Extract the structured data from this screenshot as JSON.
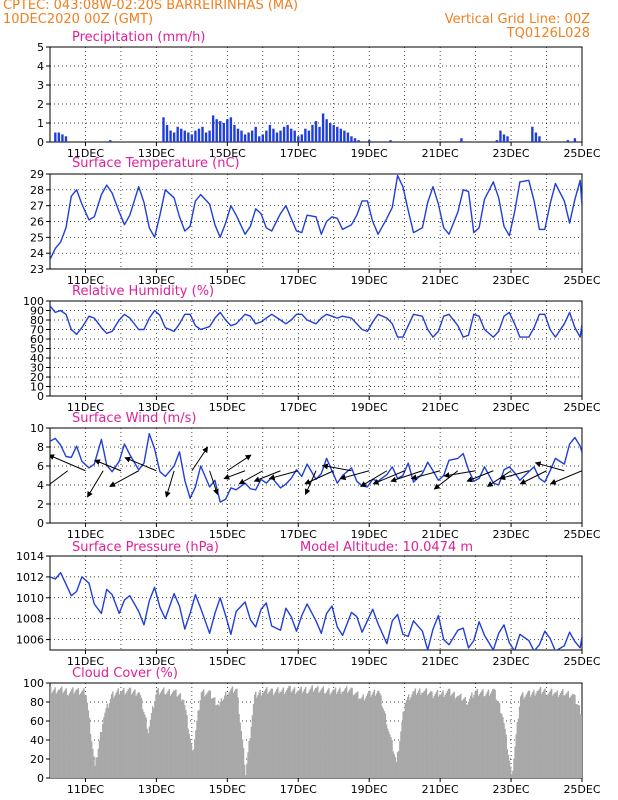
{
  "header": {
    "line1": "CPTEC:   043:08W-02:20S   BARREIRINHAS (MA)",
    "line2_left": "10DEC2020 00Z (GMT)",
    "line2_right": "Vertical Grid Line: 00Z",
    "line3_right": "TQ0126L028"
  },
  "colors": {
    "header": "#f08020",
    "title": "#e0209a",
    "series": "#1f3fd8",
    "arrows": "#000000",
    "cloud": "#a8a8a8"
  },
  "chart_data": [
    {
      "type": "bar",
      "title": "Precipitation (mm/h)",
      "ylim": [
        0,
        5
      ],
      "yticks": [
        0,
        1,
        2,
        3,
        4,
        5
      ],
      "xlim": [
        10,
        25
      ],
      "xticks": [
        "11DEC",
        "13DEC",
        "15DEC",
        "17DEC",
        "19DEC",
        "21DEC",
        "23DEC",
        "25DEC"
      ],
      "x": [
        10.15,
        10.25,
        10.35,
        10.45,
        11.7,
        13.2,
        13.3,
        13.4,
        13.5,
        13.6,
        13.7,
        13.8,
        13.9,
        14.0,
        14.1,
        14.2,
        14.3,
        14.4,
        14.5,
        14.6,
        14.7,
        14.8,
        14.9,
        15.0,
        15.1,
        15.2,
        15.3,
        15.4,
        15.5,
        15.6,
        15.7,
        15.8,
        15.9,
        16.0,
        16.1,
        16.2,
        16.3,
        16.4,
        16.5,
        16.6,
        16.7,
        16.8,
        16.9,
        17.0,
        17.1,
        17.2,
        17.3,
        17.4,
        17.5,
        17.6,
        17.7,
        17.8,
        17.9,
        18.0,
        18.1,
        18.2,
        18.3,
        18.4,
        18.5,
        18.6,
        18.7,
        19.0,
        19.6,
        21.6,
        22.6,
        22.7,
        22.8,
        22.9,
        23.6,
        23.7,
        23.8,
        24.6,
        24.8
      ],
      "values": [
        0.5,
        0.5,
        0.4,
        0.3,
        0.1,
        1.3,
        0.9,
        0.6,
        0.5,
        0.8,
        0.7,
        0.6,
        0.5,
        0.4,
        0.6,
        0.7,
        0.8,
        0.5,
        0.6,
        1.4,
        1.2,
        1.1,
        1.0,
        1.2,
        1.3,
        0.9,
        0.7,
        0.6,
        0.4,
        0.5,
        0.6,
        0.8,
        0.3,
        0.4,
        0.6,
        0.9,
        0.7,
        0.5,
        0.6,
        0.8,
        0.9,
        0.7,
        0.6,
        0.3,
        0.4,
        0.7,
        0.6,
        0.9,
        1.1,
        0.8,
        1.5,
        1.2,
        1.0,
        0.9,
        0.8,
        0.7,
        0.6,
        0.5,
        0.3,
        0.2,
        0.1,
        0.1,
        0.1,
        0.2,
        0.1,
        0.6,
        0.4,
        0.3,
        0.8,
        0.5,
        0.3,
        0.1,
        0.2
      ]
    },
    {
      "type": "line",
      "title": "Surface Temperature (nC)",
      "ylim": [
        23,
        29
      ],
      "yticks": [
        23,
        24,
        25,
        26,
        27,
        28,
        29
      ],
      "xlim": [
        10,
        25
      ],
      "xticks": [
        "11DEC",
        "13DEC",
        "15DEC",
        "17DEC",
        "19DEC",
        "21DEC",
        "23DEC",
        "25DEC"
      ],
      "x": [
        10.0,
        10.15,
        10.3,
        10.45,
        10.6,
        10.75,
        10.9,
        11.1,
        11.25,
        11.45,
        11.6,
        11.75,
        11.95,
        12.1,
        12.25,
        12.5,
        12.65,
        12.8,
        12.95,
        13.1,
        13.25,
        13.5,
        13.65,
        13.8,
        13.95,
        14.1,
        14.25,
        14.5,
        14.65,
        14.8,
        14.95,
        15.1,
        15.25,
        15.5,
        15.65,
        15.8,
        15.95,
        16.1,
        16.25,
        16.5,
        16.65,
        16.8,
        16.95,
        17.1,
        17.25,
        17.5,
        17.65,
        17.8,
        17.95,
        18.1,
        18.25,
        18.5,
        18.65,
        18.8,
        18.95,
        19.1,
        19.25,
        19.5,
        19.65,
        19.8,
        19.95,
        20.1,
        20.25,
        20.5,
        20.65,
        20.8,
        20.95,
        21.1,
        21.25,
        21.5,
        21.65,
        21.8,
        21.95,
        22.1,
        22.25,
        22.5,
        22.65,
        22.8,
        22.95,
        23.1,
        23.25,
        23.5,
        23.65,
        23.8,
        23.95,
        24.1,
        24.25,
        24.5,
        24.65,
        24.8,
        24.95,
        25.0
      ],
      "values": [
        23.6,
        24.3,
        24.7,
        25.6,
        27.6,
        28.0,
        27.1,
        26.1,
        26.3,
        27.7,
        28.3,
        27.8,
        26.6,
        25.8,
        26.4,
        28.2,
        27.2,
        25.6,
        25.0,
        26.4,
        28.0,
        27.5,
        26.3,
        25.4,
        25.7,
        27.3,
        27.7,
        27.1,
        25.8,
        25.0,
        25.9,
        27.0,
        26.4,
        25.2,
        25.7,
        26.8,
        26.5,
        25.6,
        25.4,
        26.5,
        27.0,
        26.2,
        25.4,
        25.3,
        26.4,
        26.3,
        25.2,
        26.0,
        26.3,
        26.2,
        25.5,
        25.8,
        26.4,
        27.3,
        27.3,
        26.0,
        25.2,
        26.2,
        26.9,
        28.9,
        28.2,
        26.7,
        25.3,
        25.6,
        27.2,
        28.2,
        27.1,
        25.6,
        25.2,
        26.6,
        28.0,
        27.9,
        25.3,
        25.6,
        27.4,
        28.5,
        27.5,
        25.7,
        25.1,
        26.6,
        28.5,
        28.6,
        27.3,
        25.5,
        25.5,
        27.1,
        28.4,
        27.3,
        25.9,
        27.4,
        28.6,
        27.0
      ]
    },
    {
      "type": "line",
      "title": "Relative Humidity (%)",
      "ylim": [
        0,
        100
      ],
      "yticks": [
        0,
        10,
        20,
        30,
        40,
        50,
        60,
        70,
        80,
        90,
        100
      ],
      "xlim": [
        10,
        25
      ],
      "xticks": [
        "11DEC",
        "13DEC",
        "15DEC",
        "17DEC",
        "19DEC",
        "21DEC",
        "23DEC",
        "25DEC"
      ],
      "x": [
        10.0,
        10.15,
        10.3,
        10.45,
        10.6,
        10.75,
        10.9,
        11.1,
        11.25,
        11.45,
        11.6,
        11.75,
        11.95,
        12.1,
        12.25,
        12.5,
        12.65,
        12.8,
        12.95,
        13.1,
        13.25,
        13.5,
        13.65,
        13.8,
        13.95,
        14.1,
        14.25,
        14.5,
        14.65,
        14.8,
        14.95,
        15.1,
        15.25,
        15.5,
        15.65,
        15.8,
        15.95,
        16.1,
        16.25,
        16.5,
        16.65,
        16.8,
        16.95,
        17.1,
        17.25,
        17.5,
        17.65,
        17.8,
        17.95,
        18.1,
        18.25,
        18.5,
        18.65,
        18.8,
        18.95,
        19.1,
        19.25,
        19.5,
        19.65,
        19.8,
        19.95,
        20.1,
        20.25,
        20.5,
        20.65,
        20.8,
        20.95,
        21.1,
        21.25,
        21.5,
        21.65,
        21.8,
        21.95,
        22.1,
        22.25,
        22.5,
        22.65,
        22.8,
        22.95,
        23.1,
        23.25,
        23.5,
        23.65,
        23.8,
        23.95,
        24.1,
        24.25,
        24.5,
        24.65,
        24.8,
        24.95,
        25.0
      ],
      "values": [
        95,
        88,
        90,
        86,
        70,
        65,
        72,
        84,
        82,
        72,
        66,
        68,
        80,
        86,
        82,
        70,
        70,
        82,
        90,
        85,
        72,
        68,
        76,
        86,
        86,
        74,
        70,
        73,
        82,
        88,
        80,
        74,
        76,
        86,
        84,
        76,
        78,
        82,
        86,
        80,
        76,
        80,
        86,
        86,
        80,
        76,
        82,
        86,
        84,
        82,
        84,
        82,
        76,
        70,
        68,
        78,
        86,
        82,
        76,
        62,
        62,
        74,
        86,
        84,
        70,
        62,
        68,
        84,
        86,
        74,
        62,
        64,
        86,
        84,
        70,
        62,
        68,
        84,
        88,
        76,
        62,
        62,
        72,
        86,
        86,
        70,
        62,
        76,
        88,
        72,
        62,
        76
      ]
    },
    {
      "type": "line",
      "title": "Surface Wind (m/s)",
      "ylim": [
        0,
        10
      ],
      "yticks": [
        0,
        2,
        4,
        6,
        8,
        10
      ],
      "xlim": [
        10,
        25
      ],
      "xticks": [
        "11DEC",
        "13DEC",
        "15DEC",
        "17DEC",
        "19DEC",
        "21DEC",
        "23DEC",
        "25DEC"
      ],
      "x": [
        10.0,
        10.15,
        10.3,
        10.45,
        10.6,
        10.75,
        10.9,
        11.1,
        11.25,
        11.45,
        11.6,
        11.75,
        11.95,
        12.1,
        12.25,
        12.5,
        12.65,
        12.8,
        12.95,
        13.1,
        13.25,
        13.5,
        13.65,
        13.8,
        13.95,
        14.1,
        14.25,
        14.5,
        14.65,
        14.8,
        14.95,
        15.1,
        15.25,
        15.5,
        15.65,
        15.8,
        15.95,
        16.1,
        16.25,
        16.5,
        16.65,
        16.8,
        16.95,
        17.1,
        17.25,
        17.5,
        17.65,
        17.8,
        17.95,
        18.1,
        18.25,
        18.5,
        18.65,
        18.8,
        18.95,
        19.1,
        19.25,
        19.5,
        19.65,
        19.8,
        19.95,
        20.1,
        20.25,
        20.5,
        20.65,
        20.8,
        20.95,
        21.1,
        21.25,
        21.5,
        21.65,
        21.8,
        21.95,
        22.1,
        22.25,
        22.5,
        22.65,
        22.8,
        22.95,
        23.1,
        23.25,
        23.5,
        23.65,
        23.8,
        23.95,
        24.1,
        24.25,
        24.5,
        24.65,
        24.8,
        24.95,
        25.0
      ],
      "values": [
        8.6,
        8.9,
        8.2,
        7.0,
        6.9,
        8.1,
        6.5,
        5.8,
        6.2,
        8.8,
        6.1,
        5.4,
        6.5,
        8.3,
        7.2,
        5.6,
        6.3,
        9.4,
        7.8,
        5.4,
        4.9,
        6.0,
        7.5,
        4.5,
        2.6,
        3.8,
        6.0,
        3.8,
        4.5,
        2.2,
        2.5,
        3.7,
        3.5,
        4.2,
        3.6,
        3.5,
        4.6,
        4.2,
        4.8,
        3.7,
        4.1,
        4.7,
        5.6,
        4.9,
        6.2,
        4.6,
        5.2,
        6.8,
        5.5,
        4.2,
        5.0,
        5.8,
        4.4,
        3.9,
        3.8,
        4.6,
        4.4,
        5.1,
        5.9,
        4.7,
        5.0,
        6.3,
        4.3,
        5.2,
        6.4,
        5.5,
        4.5,
        5.0,
        6.6,
        6.8,
        7.3,
        5.6,
        4.4,
        4.7,
        5.9,
        4.2,
        4.0,
        5.6,
        5.9,
        5.3,
        4.5,
        5.4,
        5.9,
        4.7,
        4.3,
        5.5,
        6.8,
        6.2,
        8.3,
        9.0,
        8.1,
        7.4
      ],
      "vectors": [
        {
          "x": 10.0,
          "u": -1.0,
          "v": -0.4
        },
        {
          "x": 10.5,
          "u": -1.2,
          "v": -0.9
        },
        {
          "x": 11.0,
          "u": -1.4,
          "v": 0.6
        },
        {
          "x": 11.5,
          "u": -0.6,
          "v": -1.0
        },
        {
          "x": 12.0,
          "u": -1.0,
          "v": 0.4
        },
        {
          "x": 12.5,
          "u": -1.1,
          "v": -0.6
        },
        {
          "x": 13.0,
          "u": -1.2,
          "v": 0.5
        },
        {
          "x": 13.5,
          "u": -0.3,
          "v": -1.0
        },
        {
          "x": 14.0,
          "u": 0.6,
          "v": 0.9
        },
        {
          "x": 14.5,
          "u": 0.3,
          "v": -0.9
        },
        {
          "x": 15.0,
          "u": 0.9,
          "v": 0.6
        },
        {
          "x": 15.5,
          "u": -0.8,
          "v": -0.3
        },
        {
          "x": 16.0,
          "u": -0.9,
          "v": -0.5
        },
        {
          "x": 16.5,
          "u": -1.0,
          "v": -0.4
        },
        {
          "x": 17.0,
          "u": -1.1,
          "v": -0.3
        },
        {
          "x": 17.5,
          "u": -0.4,
          "v": -0.9
        },
        {
          "x": 18.0,
          "u": -1.1,
          "v": -0.5
        },
        {
          "x": 18.5,
          "u": -1.1,
          "v": 0.2
        },
        {
          "x": 19.0,
          "u": -1.1,
          "v": -0.3
        },
        {
          "x": 19.5,
          "u": -1.0,
          "v": -0.6
        },
        {
          "x": 20.0,
          "u": -1.2,
          "v": -0.5
        },
        {
          "x": 20.5,
          "u": -1.2,
          "v": -0.4
        },
        {
          "x": 21.0,
          "u": -1.1,
          "v": -0.3
        },
        {
          "x": 21.5,
          "u": -0.9,
          "v": -0.7
        },
        {
          "x": 22.0,
          "u": -1.2,
          "v": -0.2
        },
        {
          "x": 22.5,
          "u": -1.0,
          "v": -0.4
        },
        {
          "x": 23.0,
          "u": -0.9,
          "v": -0.6
        },
        {
          "x": 23.5,
          "u": -1.1,
          "v": -0.3
        },
        {
          "x": 24.0,
          "u": -1.0,
          "v": -0.5
        },
        {
          "x": 24.5,
          "u": -1.1,
          "v": 0.3
        },
        {
          "x": 25.0,
          "u": -1.2,
          "v": -0.5
        }
      ]
    },
    {
      "type": "line",
      "title": "Surface Pressure (hPa)",
      "annotation": "Model Altitude: 10.0474 m",
      "ylim": [
        1005,
        1014
      ],
      "yticks": [
        1006,
        1008,
        1010,
        1012,
        1014
      ],
      "xlim": [
        10,
        25
      ],
      "xticks": [
        "11DEC",
        "13DEC",
        "15DEC",
        "17DEC",
        "19DEC",
        "21DEC",
        "23DEC",
        "25DEC"
      ],
      "x": [
        10.0,
        10.15,
        10.3,
        10.45,
        10.6,
        10.75,
        10.9,
        11.1,
        11.25,
        11.45,
        11.6,
        11.75,
        11.95,
        12.1,
        12.25,
        12.5,
        12.65,
        12.8,
        12.95,
        13.1,
        13.25,
        13.5,
        13.65,
        13.8,
        13.95,
        14.1,
        14.25,
        14.5,
        14.65,
        14.8,
        14.95,
        15.1,
        15.25,
        15.5,
        15.65,
        15.8,
        15.95,
        16.1,
        16.25,
        16.5,
        16.65,
        16.8,
        16.95,
        17.1,
        17.25,
        17.5,
        17.65,
        17.8,
        17.95,
        18.1,
        18.25,
        18.5,
        18.65,
        18.8,
        18.95,
        19.1,
        19.25,
        19.5,
        19.65,
        19.8,
        19.95,
        20.1,
        20.25,
        20.5,
        20.65,
        20.8,
        20.95,
        21.1,
        21.25,
        21.5,
        21.65,
        21.8,
        21.95,
        22.1,
        22.25,
        22.5,
        22.65,
        22.8,
        22.95,
        23.1,
        23.25,
        23.5,
        23.65,
        23.8,
        23.95,
        24.1,
        24.25,
        24.5,
        24.65,
        24.8,
        24.95,
        25.0
      ],
      "values": [
        1012.0,
        1011.8,
        1012.4,
        1011.3,
        1010.2,
        1010.6,
        1012.0,
        1011.4,
        1009.4,
        1008.5,
        1010.8,
        1010.3,
        1008.5,
        1009.8,
        1010.2,
        1008.7,
        1007.4,
        1009.7,
        1011.0,
        1009.1,
        1008.0,
        1010.4,
        1009.2,
        1007.0,
        1008.5,
        1010.3,
        1009.0,
        1006.6,
        1008.5,
        1010.0,
        1008.3,
        1006.5,
        1008.7,
        1009.6,
        1007.9,
        1007.2,
        1008.9,
        1009.5,
        1007.3,
        1006.9,
        1009.0,
        1008.2,
        1006.8,
        1008.3,
        1009.4,
        1007.8,
        1006.6,
        1008.5,
        1009.2,
        1007.2,
        1006.4,
        1008.6,
        1008.2,
        1006.7,
        1007.8,
        1008.9,
        1007.5,
        1005.6,
        1007.8,
        1008.4,
        1006.5,
        1006.3,
        1007.8,
        1006.8,
        1005.0,
        1007.0,
        1008.3,
        1006.0,
        1005.5,
        1006.9,
        1007.1,
        1005.2,
        1005.9,
        1007.7,
        1006.4,
        1005.0,
        1006.6,
        1007.4,
        1005.7,
        1004.9,
        1006.5,
        1005.9,
        1004.9,
        1005.5,
        1006.8,
        1006.1,
        1004.9,
        1005.4,
        1006.7,
        1005.8,
        1005.2,
        1006.3
      ]
    },
    {
      "type": "bar",
      "title": "Cloud Cover (%)",
      "ylim": [
        0,
        100
      ],
      "yticks": [
        0,
        20,
        40,
        60,
        80,
        100
      ],
      "xlim": [
        10,
        25
      ],
      "xticks": [
        "11DEC",
        "13DEC",
        "15DEC",
        "17DEC",
        "19DEC",
        "21DEC",
        "23DEC",
        "25DEC"
      ],
      "x": [
        10.0,
        10.25,
        10.5,
        10.75,
        11.0,
        11.25,
        11.5,
        11.75,
        12.0,
        12.25,
        12.5,
        12.75,
        13.0,
        13.25,
        13.5,
        13.75,
        14.0,
        14.25,
        14.5,
        14.75,
        15.0,
        15.25,
        15.5,
        15.75,
        16.0,
        16.25,
        16.5,
        16.75,
        17.0,
        17.25,
        17.5,
        17.75,
        18.0,
        18.25,
        18.5,
        18.75,
        19.0,
        19.25,
        19.5,
        19.75,
        20.0,
        20.25,
        20.5,
        20.75,
        21.0,
        21.25,
        21.5,
        21.75,
        22.0,
        22.25,
        22.5,
        22.75,
        23.0,
        23.25,
        23.5,
        23.75,
        24.0,
        24.25,
        24.5,
        24.75,
        25.0
      ],
      "values": [
        96,
        97,
        95,
        96,
        94,
        15,
        70,
        92,
        96,
        95,
        94,
        55,
        96,
        95,
        94,
        88,
        30,
        95,
        92,
        80,
        96,
        97,
        10,
        90,
        96,
        95,
        96,
        97,
        96,
        97,
        98,
        96,
        95,
        97,
        96,
        88,
        92,
        96,
        60,
        20,
        86,
        94,
        96,
        92,
        93,
        94,
        90,
        85,
        95,
        93,
        96,
        70,
        5,
        91,
        92,
        96,
        95,
        93,
        94,
        90,
        70
      ]
    }
  ]
}
